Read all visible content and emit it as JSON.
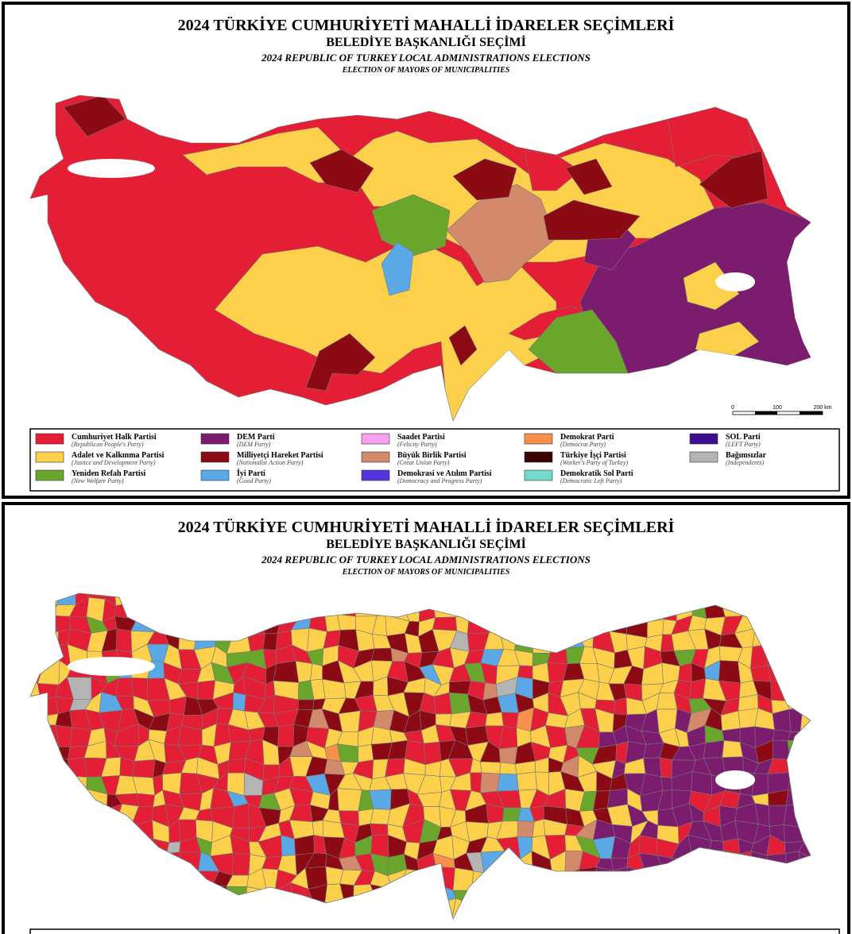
{
  "panels": [
    {
      "title": "2024 TÜRKİYE CUMHURİYETİ MAHALLİ İDARELER SEÇİMLERİ",
      "subtitle": "BELEDİYE BAŞKANLIĞI SEÇİMİ",
      "title_en": "2024 REPUBLIC OF TURKEY LOCAL ADMINISTRATIONS ELECTIONS",
      "subtitle_en": "ELECTION OF MAYORS OF MUNICIPALITIES",
      "scale": [
        "0",
        "100",
        "200 km"
      ],
      "legend": [
        {
          "name": "Cumhuriyet Halk Partisi",
          "name_en": "(Republican People's Party)",
          "color": "#e31e35"
        },
        {
          "name": "Adalet ve Kalkınma Partisi",
          "name_en": "(Justice and Development Party)",
          "color": "#fdd04b"
        },
        {
          "name": "Yeniden Refah Partisi",
          "name_en": "(New Welfare Party)",
          "color": "#6aa52c"
        },
        {
          "name": "DEM Parti",
          "name_en": "(DEM Party)",
          "color": "#7b1c6e"
        },
        {
          "name": "Milliyetçi Hareket Partisi",
          "name_en": "(Nationalist Action Party)",
          "color": "#8b0a14"
        },
        {
          "name": "İyi Parti",
          "name_en": "(Good Party)",
          "color": "#5aa9e6"
        },
        {
          "name": "Saadet Partisi",
          "name_en": "(Felicity Party)",
          "color": "#f7a0f0"
        },
        {
          "name": "Büyük Birlik Partisi",
          "name_en": "(Great Union Party)",
          "color": "#d28a6a"
        },
        {
          "name": "Demokrasi ve Atılım Partisi",
          "name_en": "(Democracy and Progress Party)",
          "color": "#5533dd"
        },
        {
          "name": "Demokrat Parti",
          "name_en": "(Democrat Party)",
          "color": "#f7904a"
        },
        {
          "name": "Türkiye İşçi Partisi",
          "name_en": "(Worker's Party of Turkey)",
          "color": "#3a0000"
        },
        {
          "name": "Demokratik Sol Parti",
          "name_en": "(Democratic Left Party)",
          "color": "#74d8cc"
        },
        {
          "name": "SOL Parti",
          "name_en": "(LEFT Party)",
          "color": "#3d0f8f"
        },
        {
          "name": "Bağımsızlar",
          "name_en": "(Independents)",
          "color": "#b4b4b4"
        }
      ]
    },
    {
      "title": "2024 TÜRKİYE CUMHURİYETİ MAHALLİ İDARELER SEÇİMLERİ",
      "subtitle": "BELEDİYE BAŞKANLIĞI SEÇİMİ",
      "title_en": "2024 REPUBLIC OF TURKEY LOCAL ADMINISTRATIONS ELECTIONS",
      "subtitle_en": "ELECTION OF MAYORS OF MUNICIPALITIES"
    }
  ]
}
